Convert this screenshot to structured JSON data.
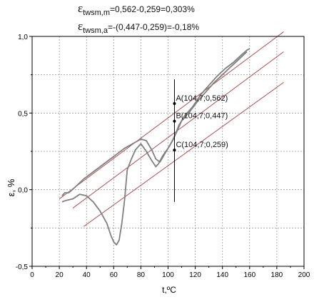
{
  "annotations": {
    "line1": {
      "symbol": "ε",
      "subscript": "twsm,m",
      "text": "=0,562-0,259=0,303%"
    },
    "line2": {
      "symbol": "ε",
      "subscript": "twsm,a",
      "text": "=-(0,447-0,259)=-0,18%"
    }
  },
  "chart_data": {
    "type": "line",
    "xlabel": "t,ºC",
    "ylabel": "ε, %",
    "xlim": [
      0,
      200
    ],
    "ylim": [
      -0.5,
      1.0
    ],
    "x_ticks": [
      "0",
      "20",
      "40",
      "60",
      "80",
      "100",
      "120",
      "140",
      "160",
      "180",
      "200"
    ],
    "y_ticks": [
      "-0,5",
      "0,0",
      "0,5",
      "1,0"
    ],
    "grid": true,
    "colors": {
      "curve": "#808080",
      "guides": "#b05050",
      "marker": "#000000"
    },
    "series": [
      {
        "x": [
          22,
          25,
          30,
          35,
          40,
          45,
          50,
          55,
          58,
          60,
          62,
          64,
          66,
          68,
          70,
          73,
          76,
          80,
          84,
          88,
          91,
          93,
          96,
          100,
          104,
          108,
          112,
          118,
          124,
          130,
          136,
          142,
          148,
          154,
          158,
          160
        ],
        "y": [
          -0.08,
          -0.07,
          -0.06,
          -0.03,
          -0.04,
          -0.08,
          -0.14,
          -0.22,
          -0.3,
          -0.34,
          -0.36,
          -0.33,
          -0.22,
          -0.07,
          0.13,
          0.2,
          0.26,
          0.3,
          0.25,
          0.19,
          0.15,
          0.17,
          0.22,
          0.27,
          0.33,
          0.42,
          0.48,
          0.54,
          0.62,
          0.68,
          0.74,
          0.79,
          0.83,
          0.88,
          0.91,
          0.92
        ]
      },
      {
        "x": [
          22,
          24,
          27,
          32,
          38,
          44,
          50,
          56,
          62,
          68,
          72,
          76,
          80,
          84,
          88,
          91,
          94,
          98,
          102,
          106,
          110,
          116,
          122,
          128,
          134,
          140,
          146,
          152,
          158
        ],
        "y": [
          -0.04,
          -0.02,
          -0.02,
          0.02,
          0.07,
          0.11,
          0.15,
          0.19,
          0.23,
          0.27,
          0.29,
          0.31,
          0.33,
          0.32,
          0.26,
          0.2,
          0.18,
          0.24,
          0.3,
          0.37,
          0.45,
          0.51,
          0.58,
          0.64,
          0.7,
          0.75,
          0.8,
          0.85,
          0.9
        ]
      }
    ],
    "guide_lines": [
      {
        "x": [
          20,
          185
        ],
        "y": [
          -0.06,
          1.03
        ]
      },
      {
        "x": [
          30,
          185
        ],
        "y": [
          -0.12,
          0.9
        ]
      },
      {
        "x": [
          38,
          185
        ],
        "y": [
          -0.24,
          0.7
        ]
      }
    ],
    "vertical_marker": {
      "x": 104.7,
      "y": [
        -0.08,
        0.72
      ]
    },
    "points": [
      {
        "label": "A(104,7;0,562)",
        "x": 104.7,
        "y": 0.562
      },
      {
        "label": "B(104,7;0,447)",
        "x": 104.7,
        "y": 0.447
      },
      {
        "label": "C(104,7;0,259)",
        "x": 104.7,
        "y": 0.259
      }
    ]
  }
}
